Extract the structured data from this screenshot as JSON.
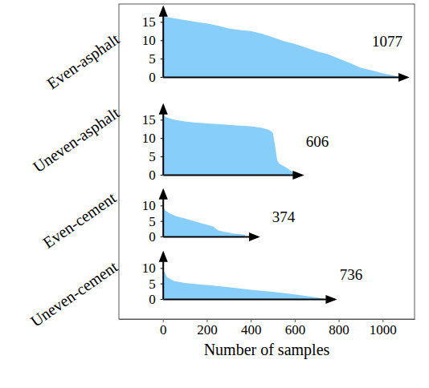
{
  "chart_data": {
    "type": "area",
    "xlabel": "Number of samples",
    "color": "#87cefa",
    "xlim": [
      -200,
      1145
    ],
    "xticks": [
      0,
      200,
      400,
      600,
      800,
      1000
    ],
    "panels": [
      {
        "label": "Even-asphalt",
        "annotation": "1077",
        "xlim": [
          0,
          1110
        ],
        "ylim": [
          0,
          19
        ],
        "yticks": [
          0,
          5,
          10,
          15
        ],
        "x": [
          0,
          50,
          100,
          150,
          200,
          250,
          300,
          350,
          400,
          450,
          500,
          550,
          600,
          650,
          700,
          750,
          800,
          850,
          900,
          950,
          1000,
          1050,
          1077
        ],
        "values": [
          16.5,
          16,
          15.5,
          15,
          14.6,
          14,
          13.2,
          12.8,
          12.5,
          11.8,
          10.8,
          9.8,
          9,
          8,
          7,
          6.2,
          5,
          3.8,
          2.5,
          1.8,
          1,
          0.4,
          0
        ]
      },
      {
        "label": "Uneven-asphalt",
        "annotation": "606",
        "xlim": [
          0,
          630
        ],
        "ylim": [
          0,
          19
        ],
        "yticks": [
          0,
          5,
          10,
          15
        ],
        "x": [
          0,
          10,
          50,
          100,
          150,
          200,
          250,
          300,
          350,
          400,
          450,
          480,
          500,
          510,
          520,
          530,
          560,
          590,
          606
        ],
        "values": [
          17.5,
          15.8,
          15,
          14.5,
          14.2,
          14,
          13.8,
          13.6,
          13.4,
          13.2,
          12.8,
          12.3,
          11.5,
          8,
          4,
          3,
          2,
          0.8,
          0
        ]
      },
      {
        "label": "Even-cement",
        "annotation": "374",
        "xlim": [
          0,
          430
        ],
        "ylim": [
          0,
          15
        ],
        "yticks": [
          0,
          5,
          10
        ],
        "x": [
          0,
          10,
          30,
          60,
          100,
          150,
          200,
          230,
          250,
          280,
          320,
          374
        ],
        "values": [
          9.5,
          8.5,
          7.5,
          6.5,
          5.8,
          4.8,
          3.8,
          3.2,
          2,
          1.5,
          1,
          0.6
        ]
      },
      {
        "label": "Uneven-cement",
        "annotation": "736",
        "xlim": [
          0,
          780
        ],
        "ylim": [
          0,
          15
        ],
        "yticks": [
          0,
          5,
          10
        ],
        "x": [
          0,
          5,
          20,
          50,
          100,
          200,
          300,
          400,
          500,
          600,
          700,
          736
        ],
        "values": [
          12,
          9,
          7,
          5.8,
          5.2,
          4.5,
          3.8,
          3,
          2.3,
          1.5,
          0.5,
          0
        ]
      }
    ]
  }
}
